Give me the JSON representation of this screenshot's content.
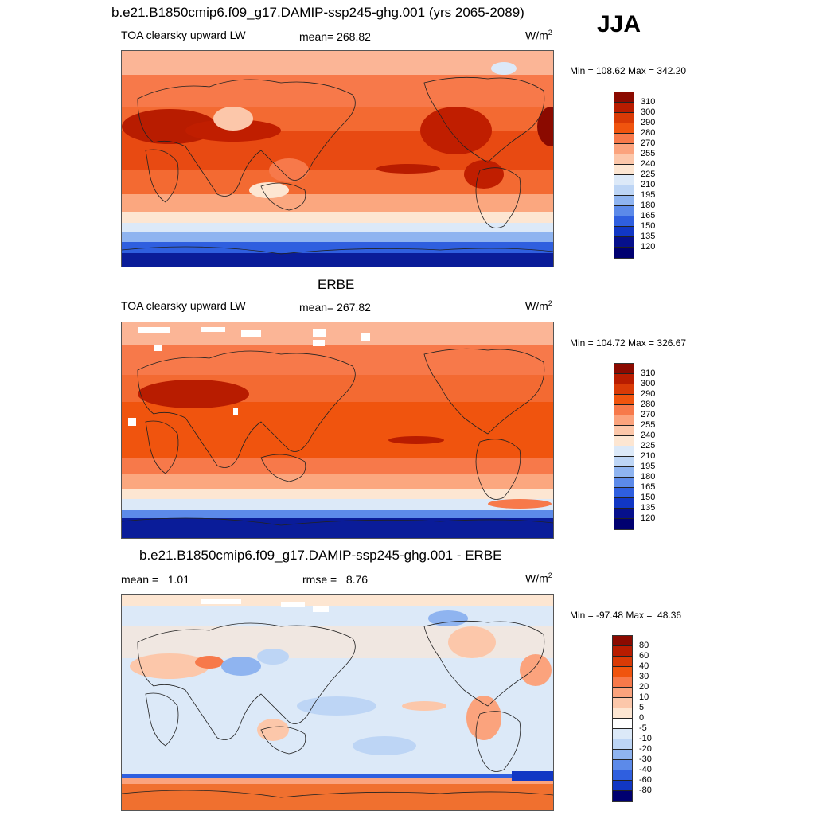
{
  "season": "JJA",
  "panels": [
    {
      "title": "b.e21.B1850cmip6.f09_g17.DAMIP-ssp245-ghg.001 (yrs 2065-2089)",
      "left_label": "TOA clearsky upward LW",
      "center_label": "mean= 268.82",
      "units": "W/m",
      "units_sup": "2",
      "minmax": "Min = 108.62 Max = 342.20",
      "colorbar": {
        "labels": [
          "310",
          "300",
          "290",
          "280",
          "270",
          "255",
          "240",
          "225",
          "210",
          "195",
          "180",
          "165",
          "150",
          "135",
          "120"
        ],
        "colors": [
          "#8b0a00",
          "#b81c00",
          "#d93a06",
          "#f0540e",
          "#f7794a",
          "#fba37d",
          "#fcc7aa",
          "#fde6d2",
          "#dce9f8",
          "#bdd5f5",
          "#8fb4f0",
          "#5c8ae9",
          "#2f5fdf",
          "#1137c4",
          "#06108c",
          "#000070"
        ]
      },
      "map_colors": {
        "tropics": "#e84a12",
        "subtropics": "#f57a45",
        "midlat": "#fba77f",
        "highlat": "#fdd3b8",
        "polar": "#dce9f8",
        "south_pole": "#1b3ec8",
        "deep_south": "#0a1c99",
        "hot": "#c01e00"
      }
    },
    {
      "title": "ERBE",
      "left_label": "TOA clearsky upward LW",
      "center_label": "mean= 267.82",
      "units": "W/m",
      "units_sup": "2",
      "minmax": "Min = 104.72 Max = 326.67",
      "colorbar": {
        "labels": [
          "310",
          "300",
          "290",
          "280",
          "270",
          "255",
          "240",
          "225",
          "210",
          "195",
          "180",
          "165",
          "150",
          "135",
          "120"
        ],
        "colors": [
          "#8b0a00",
          "#b81c00",
          "#d93a06",
          "#f0540e",
          "#f7794a",
          "#fba37d",
          "#fcc7aa",
          "#fde6d2",
          "#dce9f8",
          "#bdd5f5",
          "#8fb4f0",
          "#5c8ae9",
          "#2f5fdf",
          "#1137c4",
          "#06108c",
          "#000070"
        ]
      },
      "map_colors": {
        "tropics": "#f0540e",
        "subtropics": "#f36a32",
        "midlat": "#fba77f",
        "highlat": "#fdd3b8",
        "polar": "#dce9f8",
        "south_pole": "#1b3ec8",
        "deep_south": "#0a1c99",
        "hot": "#b81c00"
      }
    },
    {
      "title": "b.e21.B1850cmip6.f09_g17.DAMIP-ssp245-ghg.001 - ERBE",
      "left_label": "mean =   1.01",
      "center_label": "rmse =   8.76",
      "units": "W/m",
      "units_sup": "2",
      "minmax": "Min = -97.48 Max =  48.36",
      "colorbar": {
        "labels": [
          "80",
          "60",
          "40",
          "30",
          "20",
          "10",
          "5",
          "0",
          "-5",
          "-10",
          "-20",
          "-30",
          "-40",
          "-60",
          "-80"
        ],
        "colors": [
          "#8b0a00",
          "#b81c00",
          "#d93a06",
          "#f0540e",
          "#f7794a",
          "#fba37d",
          "#fcc7aa",
          "#fde6d2",
          "#ffffff",
          "#dce9f8",
          "#bdd5f5",
          "#8fb4f0",
          "#5c8ae9",
          "#2f5fdf",
          "#1137c4",
          "#000070"
        ]
      },
      "map_colors": {
        "base": "#dce9f8",
        "warm": "#fcc7aa",
        "warmer": "#f7794a",
        "cool": "#bdd5f5",
        "cooler": "#8fb4f0",
        "south_band": "#f0702f",
        "south_blue": "#2f5fdf"
      }
    }
  ]
}
